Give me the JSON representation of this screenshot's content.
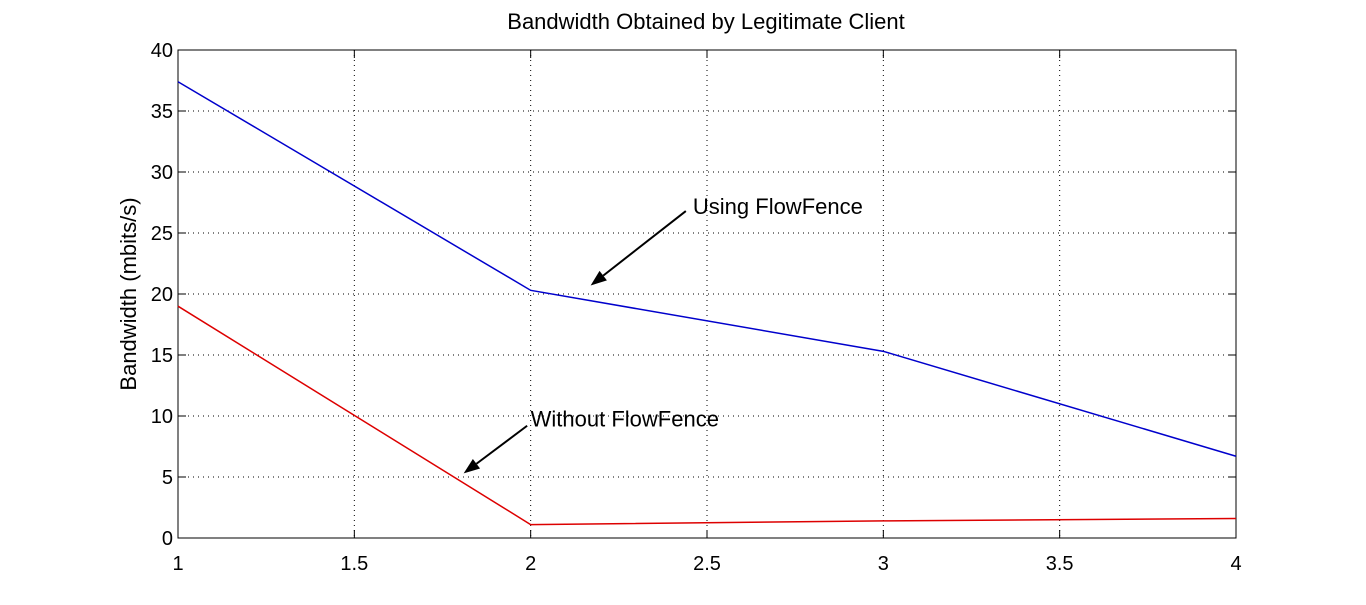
{
  "chart_data": {
    "type": "line",
    "title": "Bandwidth Obtained by Legitimate Client",
    "xlabel": "",
    "ylabel": "Bandwidth (mbits/s)",
    "xlim": [
      1,
      4
    ],
    "ylim": [
      0,
      40
    ],
    "xticks": [
      1,
      1.5,
      2,
      2.5,
      3,
      3.5,
      4
    ],
    "xtick_labels": [
      "1",
      "1.5",
      "2",
      "2.5",
      "3",
      "3.5",
      "4"
    ],
    "yticks": [
      0,
      5,
      10,
      15,
      20,
      25,
      30,
      35,
      40
    ],
    "ytick_labels": [
      "0",
      "5",
      "10",
      "15",
      "20",
      "25",
      "30",
      "35",
      "40"
    ],
    "grid": true,
    "series": [
      {
        "color": "#0000cc",
        "x": [
          1,
          2,
          3,
          4
        ],
        "y": [
          37.4,
          20.3,
          15.3,
          6.7
        ]
      },
      {
        "color": "#dd0000",
        "x": [
          1,
          2,
          3,
          4
        ],
        "y": [
          19.0,
          1.1,
          1.4,
          1.6
        ]
      }
    ],
    "annotations": [
      {
        "text": "Using FlowFence",
        "text_x": 2.46,
        "text_y": 27.2,
        "arrow_from_x": 2.44,
        "arrow_from_y": 26.8,
        "arrow_to_x": 2.17,
        "arrow_to_y": 20.7
      },
      {
        "text": "Without FlowFence",
        "text_x": 2.0,
        "text_y": 9.8,
        "arrow_from_x": 1.99,
        "arrow_from_y": 9.2,
        "arrow_to_x": 1.81,
        "arrow_to_y": 5.3
      }
    ]
  }
}
